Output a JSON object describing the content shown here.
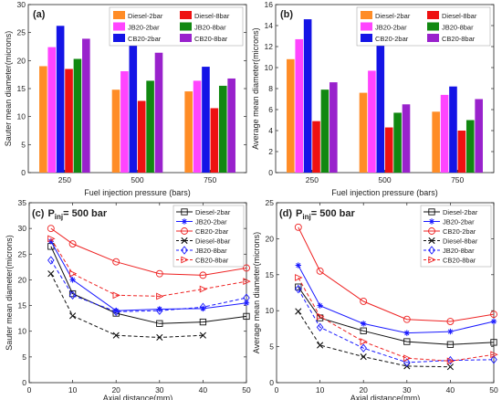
{
  "chart_data": [
    {
      "type": "bar",
      "panel_label": "(a)",
      "categories": [
        "250",
        "500",
        "750"
      ],
      "series": [
        {
          "name": "Diesel-2bar",
          "color": "#ff8c26",
          "values": [
            19.0,
            14.8,
            14.5
          ]
        },
        {
          "name": "JB20-2bar",
          "color": "#ff44ff",
          "values": [
            22.4,
            18.1,
            16.4
          ]
        },
        {
          "name": "CB20-2bar",
          "color": "#1414e6",
          "values": [
            26.2,
            24.0,
            18.9
          ]
        },
        {
          "name": "Diesel-8bar",
          "color": "#ee1111",
          "values": [
            18.5,
            12.8,
            11.5
          ]
        },
        {
          "name": "JB20-8bar",
          "color": "#118811",
          "values": [
            20.3,
            16.4,
            15.5
          ]
        },
        {
          "name": "CB20-8bar",
          "color": "#9922cc",
          "values": [
            23.9,
            21.4,
            16.8
          ]
        }
      ],
      "legend_order": [
        "Diesel-2bar",
        "Diesel-8bar",
        "JB20-2bar",
        "JB20-8bar",
        "CB20-2bar",
        "CB20-8bar"
      ],
      "xlabel": "Fuel injection pressure (bars)",
      "ylabel": "Sauter mean diameter(microns)",
      "ylim": [
        0,
        30
      ],
      "yticks": [
        0,
        5,
        10,
        15,
        20,
        25,
        30
      ],
      "legend_position": "top-right",
      "grid": false
    },
    {
      "type": "bar",
      "panel_label": "(b)",
      "categories": [
        "250",
        "500",
        "750"
      ],
      "series": [
        {
          "name": "Diesel-2bar",
          "color": "#ff8c26",
          "values": [
            10.8,
            7.6,
            5.8
          ]
        },
        {
          "name": "JB20-2bar",
          "color": "#ff44ff",
          "values": [
            12.7,
            9.7,
            7.4
          ]
        },
        {
          "name": "CB20-2bar",
          "color": "#1414e6",
          "values": [
            14.6,
            12.6,
            8.2
          ]
        },
        {
          "name": "Diesel-8bar",
          "color": "#ee1111",
          "values": [
            4.9,
            4.3,
            4.0
          ]
        },
        {
          "name": "JB20-8bar",
          "color": "#118811",
          "values": [
            7.9,
            5.7,
            5.0
          ]
        },
        {
          "name": "CB20-8bar",
          "color": "#9922cc",
          "values": [
            8.6,
            6.5,
            7.0
          ]
        }
      ],
      "legend_order": [
        "Diesel-2bar",
        "Diesel-8bar",
        "JB20-2bar",
        "JB20-8bar",
        "CB20-2bar",
        "CB20-8bar"
      ],
      "xlabel": "Fuel injection pressure (bars)",
      "ylabel": "Average mean diameter(microns)",
      "ylim": [
        0,
        16
      ],
      "yticks": [
        0,
        2,
        4,
        6,
        8,
        10,
        12,
        14,
        16
      ],
      "legend_position": "top-right",
      "grid": false
    },
    {
      "type": "line",
      "panel_label": "(c)",
      "panel_title_main": "P",
      "panel_title_sub": "inj",
      "panel_title_rest": " = 500 bar",
      "x": [
        5,
        10,
        20,
        30,
        40,
        50
      ],
      "series": [
        {
          "name": "Diesel-2bar",
          "color": "#111111",
          "marker": "square",
          "dash": "solid",
          "values": [
            26.5,
            17.3,
            13.5,
            11.5,
            11.8,
            12.9
          ]
        },
        {
          "name": "JB20-2bar",
          "color": "#1a1aff",
          "marker": "star",
          "dash": "solid",
          "values": [
            27.5,
            20.0,
            14.0,
            14.3,
            14.4,
            15.5
          ]
        },
        {
          "name": "CB20-2bar",
          "color": "#ee2222",
          "marker": "circle",
          "dash": "solid",
          "values": [
            30.0,
            27.0,
            23.5,
            21.2,
            20.9,
            22.3
          ]
        },
        {
          "name": "Diesel-8bar",
          "color": "#111111",
          "marker": "x",
          "dash": "dash",
          "values": [
            21.2,
            13.0,
            9.2,
            8.8,
            9.2,
            null
          ]
        },
        {
          "name": "JB20-8bar",
          "color": "#1a1aff",
          "marker": "diamond",
          "dash": "dash",
          "values": [
            23.8,
            17.0,
            13.8,
            14.0,
            14.7,
            16.5
          ]
        },
        {
          "name": "CB20-8bar",
          "color": "#ee2222",
          "marker": "triangle-right",
          "dash": "dash",
          "values": [
            28.0,
            21.2,
            17.0,
            16.8,
            18.2,
            19.7
          ]
        }
      ],
      "xlabel": "Axial distance(mm)",
      "ylabel": "Sauter mean diameter(microns)",
      "xlim": [
        0,
        50
      ],
      "xticks": [
        0,
        10,
        20,
        30,
        40,
        50
      ],
      "ylim": [
        0,
        35
      ],
      "yticks": [
        0,
        5,
        10,
        15,
        20,
        25,
        30,
        35
      ],
      "legend_position": "top-right",
      "grid": false
    },
    {
      "type": "line",
      "panel_label": "(d)",
      "panel_title_main": "P",
      "panel_title_sub": "inj",
      "panel_title_rest": " = 500 bar",
      "x": [
        5,
        10,
        20,
        30,
        40,
        50
      ],
      "series": [
        {
          "name": "Diesel-2bar",
          "color": "#111111",
          "marker": "square",
          "dash": "solid",
          "values": [
            13.3,
            9.0,
            7.2,
            5.7,
            5.3,
            5.6
          ]
        },
        {
          "name": "JB20-2bar",
          "color": "#1a1aff",
          "marker": "star",
          "dash": "solid",
          "values": [
            16.3,
            10.7,
            8.2,
            6.9,
            7.1,
            8.5
          ]
        },
        {
          "name": "CB20-2bar",
          "color": "#ee2222",
          "marker": "circle",
          "dash": "solid",
          "values": [
            21.6,
            15.5,
            11.3,
            8.8,
            8.5,
            9.5
          ]
        },
        {
          "name": "Diesel-8bar",
          "color": "#111111",
          "marker": "x",
          "dash": "dash",
          "values": [
            9.9,
            5.2,
            3.6,
            2.3,
            2.2,
            null
          ]
        },
        {
          "name": "JB20-8bar",
          "color": "#1a1aff",
          "marker": "diamond",
          "dash": "dash",
          "values": [
            13.0,
            7.7,
            4.8,
            2.8,
            3.1,
            3.2
          ]
        },
        {
          "name": "CB20-8bar",
          "color": "#ee2222",
          "marker": "triangle-right",
          "dash": "dash",
          "values": [
            14.6,
            9.2,
            5.7,
            3.4,
            3.0,
            3.9
          ]
        }
      ],
      "xlabel": "Axial distance(mm)",
      "ylabel": "Average mean diameter(microns)",
      "xlim": [
        0,
        50
      ],
      "xticks": [
        0,
        10,
        20,
        30,
        40,
        50
      ],
      "ylim": [
        0,
        25
      ],
      "yticks": [
        0,
        5,
        10,
        15,
        20,
        25
      ],
      "legend_position": "top-right",
      "grid": false
    }
  ]
}
